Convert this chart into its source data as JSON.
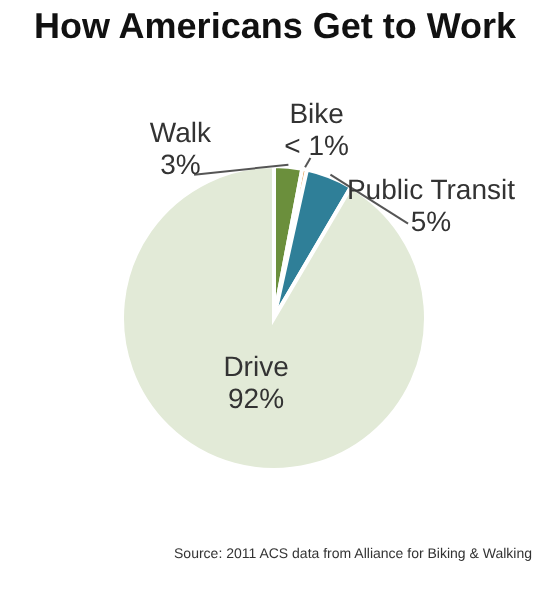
{
  "chart_data": {
    "type": "pie",
    "title": "How Americans Get to Work",
    "categories": [
      "Walk",
      "Bike",
      "Public Transit",
      "Drive"
    ],
    "values": [
      3,
      0.5,
      5,
      92
    ],
    "value_labels": [
      "3%",
      "< 1%",
      "5%",
      "92%"
    ],
    "colors": [
      "#6b8f3c",
      "#d5852f",
      "#2f7f98",
      "#e2ead7"
    ],
    "annotations": [
      "Source: 2011 ACS data from Alliance for Biking & Walking"
    ]
  }
}
